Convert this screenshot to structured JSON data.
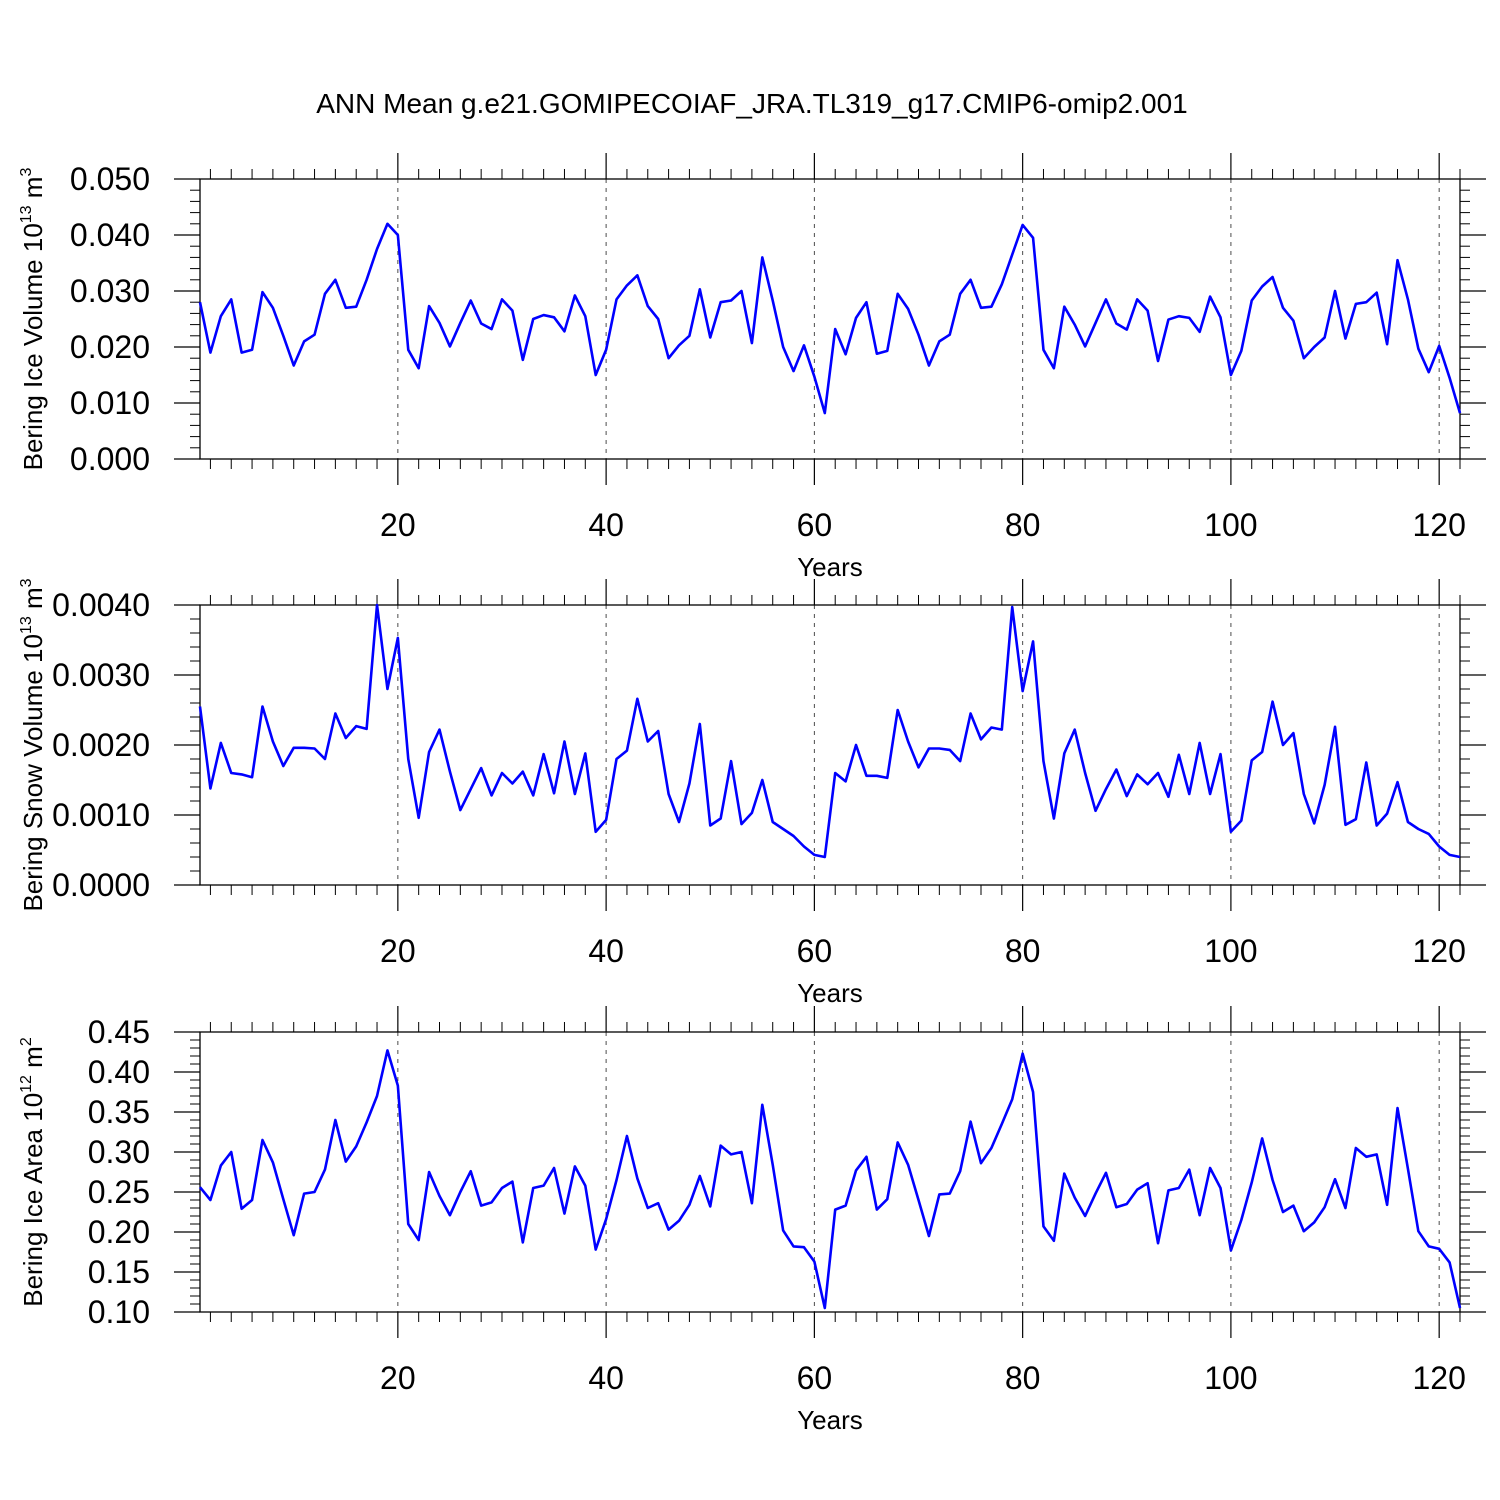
{
  "title": "ANN Mean g.e21.GOMIPECOIAF_JRA.TL319_g17.CMIP6-omip2.001",
  "line_color": "#0000ff",
  "chart_data": [
    {
      "type": "line",
      "ylabel": "Bering Ice Volume 10",
      "ylabel_exp": "13",
      "ylabel_unit": " m",
      "ylabel_unit_exp": "3",
      "xlabel": "Years",
      "xlim": [
        1,
        122
      ],
      "ylim": [
        0.0,
        0.05
      ],
      "x_ticks": [
        20,
        40,
        60,
        80,
        100,
        120
      ],
      "y_ticks": [
        0.0,
        0.01,
        0.02,
        0.03,
        0.04,
        0.05
      ],
      "y_tick_labels": [
        "0.000",
        "0.010",
        "0.020",
        "0.030",
        "0.040",
        "0.050"
      ],
      "x_grid": "dashed at major x ticks",
      "values": [
        0.028,
        0.019,
        0.0255,
        0.0285,
        0.019,
        0.0195,
        0.0298,
        0.027,
        0.022,
        0.0167,
        0.021,
        0.0222,
        0.0295,
        0.032,
        0.027,
        0.0272,
        0.032,
        0.0375,
        0.042,
        0.04,
        0.0195,
        0.0162,
        0.0273,
        0.0243,
        0.0201,
        0.0243,
        0.0283,
        0.0242,
        0.0232,
        0.0285,
        0.0265,
        0.0177,
        0.025,
        0.0257,
        0.0253,
        0.0228,
        0.0292,
        0.0255,
        0.015,
        0.0195,
        0.0285,
        0.031,
        0.0328,
        0.0273,
        0.025,
        0.018,
        0.0203,
        0.022,
        0.0303,
        0.0217,
        0.028,
        0.0283,
        0.03,
        0.0207,
        0.036,
        0.0283,
        0.02,
        0.0157,
        0.0203,
        0.0147,
        0.0082,
        0.0232,
        0.0187,
        0.0252,
        0.028,
        0.0188,
        0.0193,
        0.0295,
        0.0268,
        0.0222,
        0.0167,
        0.021,
        0.0222,
        0.0295,
        0.032,
        0.027,
        0.0272,
        0.0312,
        0.0365,
        0.0418,
        0.0395,
        0.0195,
        0.0162,
        0.0272,
        0.024,
        0.0201,
        0.0243,
        0.0285,
        0.0242,
        0.0231,
        0.0285,
        0.0265,
        0.0175,
        0.0249,
        0.0255,
        0.0252,
        0.0227,
        0.029,
        0.0253,
        0.015,
        0.0193,
        0.0283,
        0.0308,
        0.0325,
        0.027,
        0.0247,
        0.018,
        0.02,
        0.0217,
        0.03,
        0.0215,
        0.0277,
        0.028,
        0.0297,
        0.0205,
        0.0355,
        0.0285,
        0.0197,
        0.0155,
        0.0202,
        0.0145,
        0.0082
      ]
    },
    {
      "type": "line",
      "ylabel": "Bering Snow Volume 10",
      "ylabel_exp": "13",
      "ylabel_unit": " m",
      "ylabel_unit_exp": "3",
      "xlabel": "Years",
      "xlim": [
        1,
        122
      ],
      "ylim": [
        0.0,
        0.004
      ],
      "x_ticks": [
        20,
        40,
        60,
        80,
        100,
        120
      ],
      "y_ticks": [
        0.0,
        0.001,
        0.002,
        0.003,
        0.004
      ],
      "y_tick_labels": [
        "0.0000",
        "0.0010",
        "0.0020",
        "0.0030",
        "0.0040"
      ],
      "x_grid": "dashed at major x ticks",
      "values": [
        0.00255,
        0.00138,
        0.00203,
        0.0016,
        0.00158,
        0.00154,
        0.00255,
        0.00205,
        0.0017,
        0.00196,
        0.00196,
        0.00195,
        0.0018,
        0.00245,
        0.0021,
        0.00227,
        0.00223,
        0.004,
        0.0028,
        0.00353,
        0.0018,
        0.00096,
        0.0019,
        0.00222,
        0.00162,
        0.00107,
        0.00137,
        0.00167,
        0.00128,
        0.0016,
        0.00145,
        0.00162,
        0.00128,
        0.00187,
        0.00131,
        0.00205,
        0.0013,
        0.00188,
        0.00076,
        0.00093,
        0.0018,
        0.00192,
        0.00266,
        0.00205,
        0.0022,
        0.0013,
        0.0009,
        0.00145,
        0.0023,
        0.00085,
        0.00095,
        0.00177,
        0.00087,
        0.00103,
        0.0015,
        0.0009,
        0.0008,
        0.0007,
        0.00055,
        0.00043,
        0.0004,
        0.0016,
        0.00148,
        0.002,
        0.00156,
        0.00156,
        0.00153,
        0.0025,
        0.00205,
        0.00168,
        0.00195,
        0.00195,
        0.00193,
        0.00177,
        0.00245,
        0.00208,
        0.00225,
        0.00222,
        0.00397,
        0.00277,
        0.00348,
        0.00177,
        0.00095,
        0.00188,
        0.00222,
        0.0016,
        0.00106,
        0.00137,
        0.00165,
        0.00127,
        0.00158,
        0.00144,
        0.0016,
        0.00126,
        0.00186,
        0.0013,
        0.00203,
        0.0013,
        0.00187,
        0.00076,
        0.00092,
        0.00178,
        0.0019,
        0.00262,
        0.002,
        0.00217,
        0.0013,
        0.00088,
        0.00143,
        0.00226,
        0.00086,
        0.00094,
        0.00175,
        0.00085,
        0.00102,
        0.00147,
        0.0009,
        0.0008,
        0.00073,
        0.00055,
        0.00043,
        0.0004
      ]
    },
    {
      "type": "line",
      "ylabel": "Bering Ice Area 10",
      "ylabel_exp": "12",
      "ylabel_unit": " m",
      "ylabel_unit_exp": "2",
      "xlabel": "Years",
      "xlim": [
        1,
        122
      ],
      "ylim": [
        0.1,
        0.45
      ],
      "x_ticks": [
        20,
        40,
        60,
        80,
        100,
        120
      ],
      "y_ticks": [
        0.1,
        0.15,
        0.2,
        0.25,
        0.3,
        0.35,
        0.4,
        0.45
      ],
      "y_tick_labels": [
        "0.10",
        "0.15",
        "0.20",
        "0.25",
        "0.30",
        "0.35",
        "0.40",
        "0.45"
      ],
      "x_grid": "dashed at major x ticks",
      "values": [
        0.256,
        0.24,
        0.283,
        0.3,
        0.229,
        0.24,
        0.315,
        0.287,
        0.241,
        0.196,
        0.248,
        0.25,
        0.278,
        0.34,
        0.288,
        0.307,
        0.337,
        0.37,
        0.427,
        0.383,
        0.21,
        0.19,
        0.275,
        0.245,
        0.221,
        0.25,
        0.276,
        0.233,
        0.237,
        0.255,
        0.263,
        0.187,
        0.255,
        0.258,
        0.28,
        0.223,
        0.282,
        0.258,
        0.178,
        0.216,
        0.265,
        0.32,
        0.267,
        0.23,
        0.236,
        0.203,
        0.214,
        0.234,
        0.27,
        0.232,
        0.308,
        0.297,
        0.3,
        0.236,
        0.359,
        0.284,
        0.202,
        0.182,
        0.181,
        0.163,
        0.105,
        0.228,
        0.233,
        0.277,
        0.294,
        0.228,
        0.241,
        0.312,
        0.284,
        0.24,
        0.195,
        0.247,
        0.248,
        0.276,
        0.338,
        0.286,
        0.305,
        0.335,
        0.366,
        0.423,
        0.375,
        0.207,
        0.189,
        0.273,
        0.243,
        0.22,
        0.248,
        0.274,
        0.231,
        0.235,
        0.253,
        0.261,
        0.186,
        0.252,
        0.255,
        0.278,
        0.221,
        0.28,
        0.255,
        0.177,
        0.215,
        0.262,
        0.317,
        0.265,
        0.225,
        0.233,
        0.201,
        0.212,
        0.231,
        0.266,
        0.23,
        0.305,
        0.294,
        0.297,
        0.234,
        0.355,
        0.279,
        0.201,
        0.182,
        0.179,
        0.162,
        0.105
      ]
    }
  ]
}
